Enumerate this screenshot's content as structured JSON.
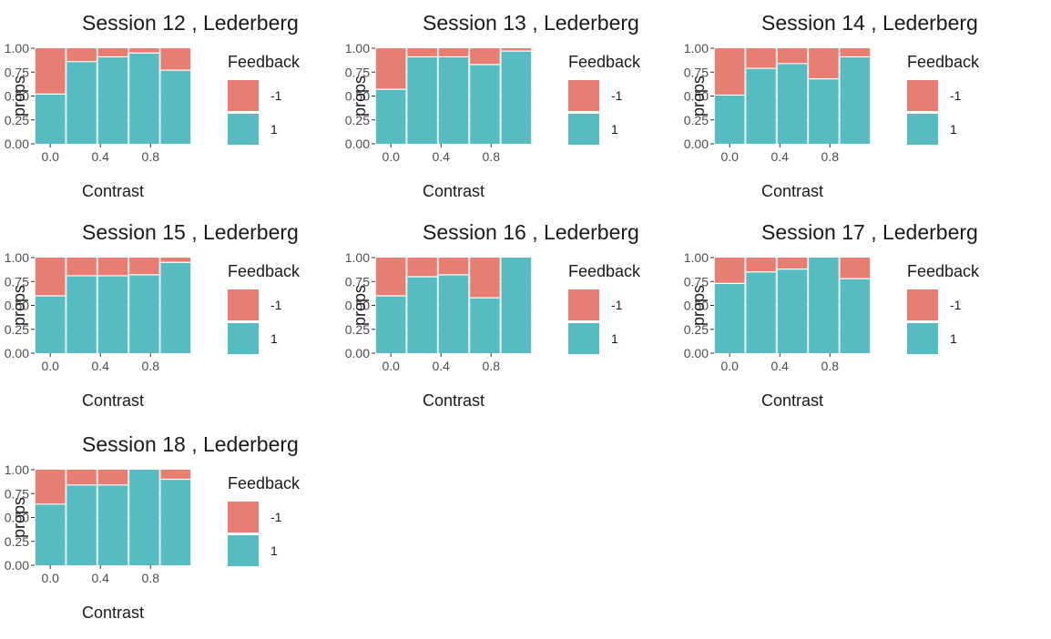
{
  "chart_data": [
    {
      "type": "bar",
      "title": "Session  12 , Lederberg",
      "xlabel": "Contrast",
      "ylabel": "props",
      "x": [
        0,
        0.25,
        0.5,
        0.75,
        1
      ],
      "xticks": [
        "0.0",
        "0.4",
        "0.8"
      ],
      "yticks": [
        "0.00",
        "0.25",
        "0.50",
        "0.75",
        "1.00"
      ],
      "ylim": [
        0,
        1
      ],
      "series": [
        {
          "name": "1",
          "values": [
            0.52,
            0.86,
            0.91,
            0.95,
            0.77
          ]
        },
        {
          "name": "-1",
          "values": [
            0.48,
            0.14,
            0.09,
            0.05,
            0.23
          ]
        }
      ],
      "legend": {
        "title": "Feedback",
        "entries": [
          "-1",
          "1"
        ]
      }
    },
    {
      "type": "bar",
      "title": "Session  13 , Lederberg",
      "xlabel": "Contrast",
      "ylabel": "props",
      "x": [
        0,
        0.25,
        0.5,
        0.75,
        1
      ],
      "xticks": [
        "0.0",
        "0.4",
        "0.8"
      ],
      "yticks": [
        "0.00",
        "0.25",
        "0.50",
        "0.75",
        "1.00"
      ],
      "ylim": [
        0,
        1
      ],
      "series": [
        {
          "name": "1",
          "values": [
            0.57,
            0.91,
            0.91,
            0.83,
            0.97
          ]
        },
        {
          "name": "-1",
          "values": [
            0.43,
            0.09,
            0.09,
            0.17,
            0.03
          ]
        }
      ],
      "legend": {
        "title": "Feedback",
        "entries": [
          "-1",
          "1"
        ]
      }
    },
    {
      "type": "bar",
      "title": "Session  14 , Lederberg",
      "xlabel": "Contrast",
      "ylabel": "props",
      "x": [
        0,
        0.25,
        0.5,
        0.75,
        1
      ],
      "xticks": [
        "0.0",
        "0.4",
        "0.8"
      ],
      "yticks": [
        "0.00",
        "0.25",
        "0.50",
        "0.75",
        "1.00"
      ],
      "ylim": [
        0,
        1
      ],
      "series": [
        {
          "name": "1",
          "values": [
            0.51,
            0.79,
            0.84,
            0.68,
            0.91
          ]
        },
        {
          "name": "-1",
          "values": [
            0.49,
            0.21,
            0.16,
            0.32,
            0.09
          ]
        }
      ],
      "legend": {
        "title": "Feedback",
        "entries": [
          "-1",
          "1"
        ]
      }
    },
    {
      "type": "bar",
      "title": "Session  15 , Lederberg",
      "xlabel": "Contrast",
      "ylabel": "props",
      "x": [
        0,
        0.25,
        0.5,
        0.75,
        1
      ],
      "xticks": [
        "0.0",
        "0.4",
        "0.8"
      ],
      "yticks": [
        "0.00",
        "0.25",
        "0.50",
        "0.75",
        "1.00"
      ],
      "ylim": [
        0,
        1
      ],
      "series": [
        {
          "name": "1",
          "values": [
            0.6,
            0.81,
            0.81,
            0.82,
            0.95
          ]
        },
        {
          "name": "-1",
          "values": [
            0.4,
            0.19,
            0.19,
            0.18,
            0.05
          ]
        }
      ],
      "legend": {
        "title": "Feedback",
        "entries": [
          "-1",
          "1"
        ]
      }
    },
    {
      "type": "bar",
      "title": "Session  16 , Lederberg",
      "xlabel": "Contrast",
      "ylabel": "props",
      "x": [
        0,
        0.25,
        0.5,
        0.75,
        1
      ],
      "xticks": [
        "0.0",
        "0.4",
        "0.8"
      ],
      "yticks": [
        "0.00",
        "0.25",
        "0.50",
        "0.75",
        "1.00"
      ],
      "ylim": [
        0,
        1
      ],
      "series": [
        {
          "name": "1",
          "values": [
            0.6,
            0.8,
            0.82,
            0.58,
            1.0
          ]
        },
        {
          "name": "-1",
          "values": [
            0.4,
            0.2,
            0.18,
            0.42,
            0.0
          ]
        }
      ],
      "legend": {
        "title": "Feedback",
        "entries": [
          "-1",
          "1"
        ]
      }
    },
    {
      "type": "bar",
      "title": "Session  17 , Lederberg",
      "xlabel": "Contrast",
      "ylabel": "props",
      "x": [
        0,
        0.25,
        0.5,
        0.75,
        1
      ],
      "xticks": [
        "0.0",
        "0.4",
        "0.8"
      ],
      "yticks": [
        "0.00",
        "0.25",
        "0.50",
        "0.75",
        "1.00"
      ],
      "ylim": [
        0,
        1
      ],
      "series": [
        {
          "name": "1",
          "values": [
            0.73,
            0.85,
            0.88,
            1.0,
            0.78
          ]
        },
        {
          "name": "-1",
          "values": [
            0.27,
            0.15,
            0.12,
            0.0,
            0.22
          ]
        }
      ],
      "legend": {
        "title": "Feedback",
        "entries": [
          "-1",
          "1"
        ]
      }
    },
    {
      "type": "bar",
      "title": "Session  18 , Lederberg",
      "xlabel": "Contrast",
      "ylabel": "props",
      "x": [
        0,
        0.25,
        0.5,
        0.75,
        1
      ],
      "xticks": [
        "0.0",
        "0.4",
        "0.8"
      ],
      "yticks": [
        "0.00",
        "0.25",
        "0.50",
        "0.75",
        "1.00"
      ],
      "ylim": [
        0,
        1
      ],
      "series": [
        {
          "name": "1",
          "values": [
            0.64,
            0.84,
            0.84,
            1.0,
            0.9
          ]
        },
        {
          "name": "-1",
          "values": [
            0.36,
            0.16,
            0.16,
            0.0,
            0.1
          ]
        }
      ],
      "legend": {
        "title": "Feedback",
        "entries": [
          "-1",
          "1"
        ]
      }
    }
  ],
  "colors": {
    "positive": "#56bcc2",
    "negative": "#e87d72",
    "panel_bg": "#ebebeb",
    "grid": "#ffffff"
  }
}
